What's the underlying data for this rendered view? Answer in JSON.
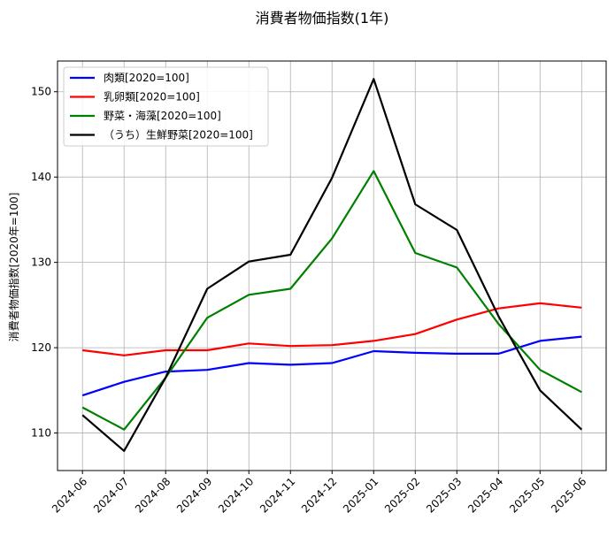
{
  "chart_data": {
    "type": "line",
    "title": "消費者物価指数(1年)",
    "xlabel": "",
    "ylabel": "消費者物価指数[2020年=100]",
    "categories": [
      "2024-06",
      "2024-07",
      "2024-08",
      "2024-09",
      "2024-10",
      "2024-11",
      "2024-12",
      "2025-01",
      "2025-02",
      "2025-03",
      "2025-04",
      "2025-05",
      "2025-06"
    ],
    "yticks": [
      110,
      120,
      130,
      140,
      150
    ],
    "ylim": [
      105.6,
      153.6
    ],
    "grid": true,
    "legend_position": "top-left",
    "series": [
      {
        "name": "肉類[2020=100]",
        "color": "#0000ff",
        "values": [
          114.4,
          116.0,
          117.2,
          117.4,
          118.2,
          118.0,
          118.2,
          119.6,
          119.4,
          119.3,
          119.3,
          120.8,
          121.3
        ]
      },
      {
        "name": "乳卵類[2020=100]",
        "color": "#ff0000",
        "values": [
          119.7,
          119.1,
          119.7,
          119.7,
          120.5,
          120.2,
          120.3,
          120.8,
          121.6,
          123.3,
          124.6,
          125.2,
          124.7
        ]
      },
      {
        "name": "野菜・海藻[2020=100]",
        "color": "#008000",
        "values": [
          113.0,
          110.4,
          116.5,
          123.5,
          126.2,
          126.9,
          132.8,
          140.7,
          131.1,
          129.4,
          122.8,
          117.4,
          114.8
        ]
      },
      {
        "name": "（うち）生鮮野菜[2020=100]",
        "color": "#000000",
        "values": [
          112.1,
          107.9,
          116.5,
          126.9,
          130.1,
          130.9,
          139.9,
          151.5,
          136.8,
          133.8,
          123.7,
          115.0,
          110.4
        ]
      }
    ]
  }
}
